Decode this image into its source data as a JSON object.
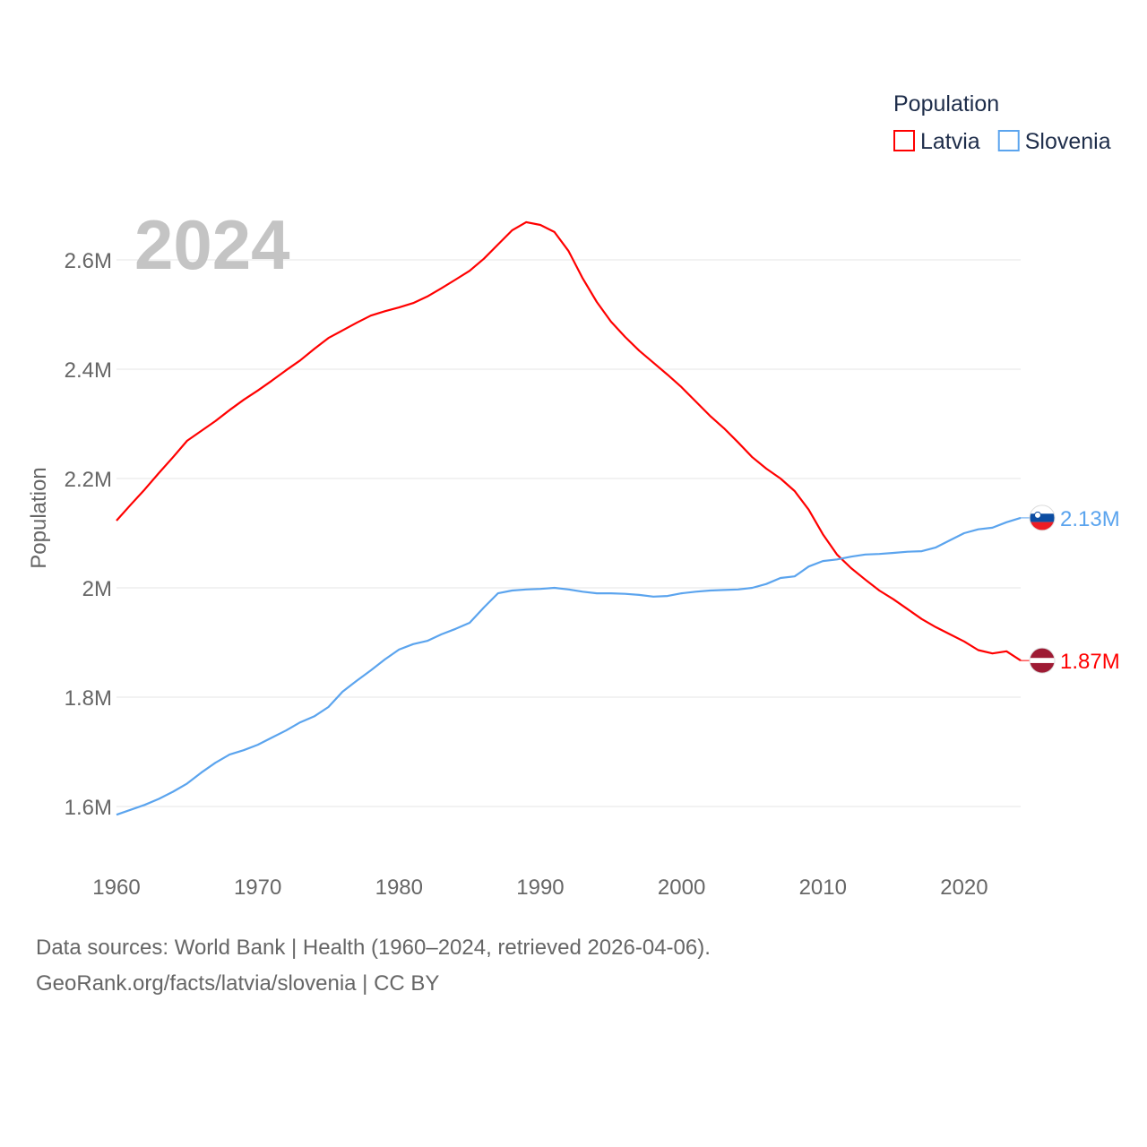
{
  "chart_data": {
    "type": "line",
    "year_label": "2024",
    "ylabel": "Population",
    "xlabel": "",
    "ylim": [
      1.5,
      2.72
    ],
    "xlim": [
      1960,
      2024
    ],
    "yticks": [
      1.6,
      1.8,
      2.0,
      2.2,
      2.4,
      2.6
    ],
    "ytick_labels": [
      "1.6M",
      "1.8M",
      "2M",
      "2.2M",
      "2.4M",
      "2.6M"
    ],
    "xticks": [
      1960,
      1970,
      1980,
      1990,
      2000,
      2010,
      2020
    ],
    "xtick_labels": [
      "1960",
      "1970",
      "1980",
      "1990",
      "2000",
      "2010",
      "2020"
    ],
    "grid": true,
    "legend": {
      "title": "Population",
      "placement": "top-right"
    },
    "x": [
      1960,
      1961,
      1962,
      1963,
      1964,
      1965,
      1966,
      1967,
      1968,
      1969,
      1970,
      1971,
      1972,
      1973,
      1974,
      1975,
      1976,
      1977,
      1978,
      1979,
      1980,
      1981,
      1982,
      1983,
      1984,
      1985,
      1986,
      1987,
      1988,
      1989,
      1990,
      1991,
      1992,
      1993,
      1994,
      1995,
      1996,
      1997,
      1998,
      1999,
      2000,
      2001,
      2002,
      2003,
      2004,
      2005,
      2006,
      2007,
      2008,
      2009,
      2010,
      2011,
      2012,
      2013,
      2014,
      2015,
      2016,
      2017,
      2018,
      2019,
      2020,
      2021,
      2022,
      2023,
      2024
    ],
    "series": [
      {
        "name": "Latvia",
        "color": "#ff0000",
        "end_label": "1.87M",
        "values": [
          2.123,
          2.152,
          2.18,
          2.21,
          2.239,
          2.269,
          2.287,
          2.305,
          2.325,
          2.344,
          2.361,
          2.379,
          2.398,
          2.416,
          2.437,
          2.457,
          2.471,
          2.485,
          2.498,
          2.506,
          2.513,
          2.521,
          2.533,
          2.548,
          2.564,
          2.58,
          2.602,
          2.628,
          2.654,
          2.669,
          2.664,
          2.651,
          2.616,
          2.566,
          2.523,
          2.487,
          2.459,
          2.434,
          2.412,
          2.39,
          2.367,
          2.341,
          2.315,
          2.292,
          2.266,
          2.239,
          2.218,
          2.2,
          2.177,
          2.143,
          2.098,
          2.061,
          2.036,
          2.015,
          1.995,
          1.979,
          1.961,
          1.943,
          1.928,
          1.915,
          1.902,
          1.886,
          1.88,
          1.884,
          1.867
        ]
      },
      {
        "name": "Slovenia",
        "color": "#5ba4ee",
        "end_label": "2.13M",
        "values": [
          1.585,
          1.594,
          1.603,
          1.614,
          1.627,
          1.642,
          1.662,
          1.68,
          1.695,
          1.703,
          1.713,
          1.726,
          1.739,
          1.754,
          1.765,
          1.782,
          1.81,
          1.83,
          1.849,
          1.869,
          1.887,
          1.897,
          1.903,
          1.915,
          1.925,
          1.936,
          1.964,
          1.99,
          1.995,
          1.997,
          1.998,
          2.0,
          1.997,
          1.993,
          1.99,
          1.99,
          1.989,
          1.987,
          1.984,
          1.985,
          1.99,
          1.993,
          1.995,
          1.996,
          1.997,
          2.0,
          2.007,
          2.018,
          2.021,
          2.039,
          2.049,
          2.052,
          2.057,
          2.061,
          2.062,
          2.064,
          2.066,
          2.067,
          2.074,
          2.087,
          2.1,
          2.107,
          2.11,
          2.12,
          2.128
        ]
      }
    ]
  },
  "footer": {
    "line1": "Data sources: World Bank | Health (1960–2024, retrieved 2026-04-06).",
    "line2": "GeoRank.org/facts/latvia/slovenia | CC BY"
  }
}
